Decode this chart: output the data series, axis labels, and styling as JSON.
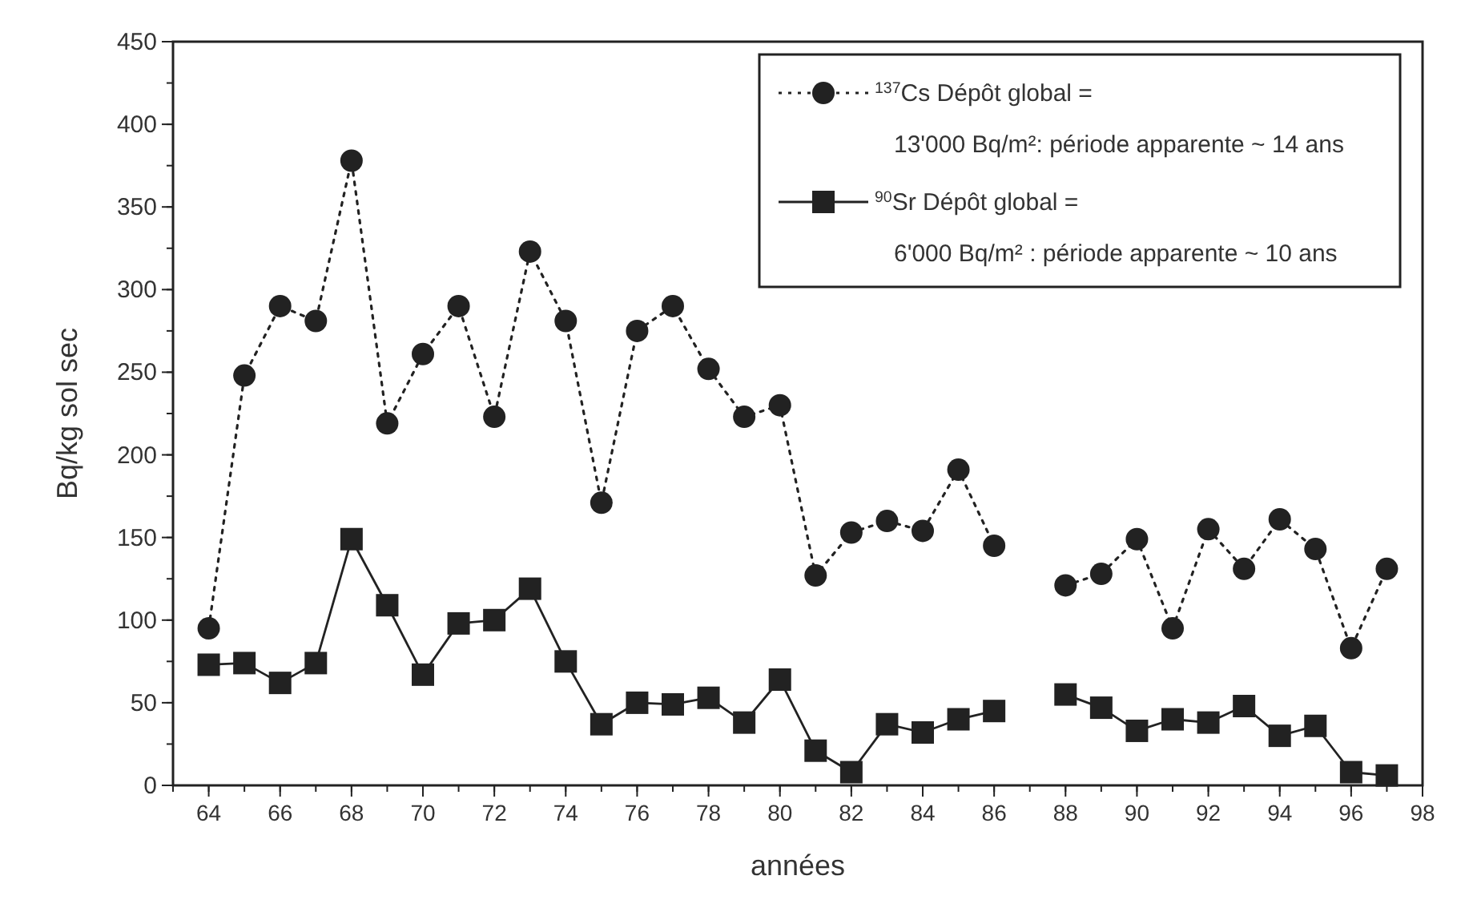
{
  "chart_data": {
    "type": "line",
    "xlabel": "années",
    "ylabel": "Bq/kg sol sec",
    "x": [
      64,
      65,
      66,
      67,
      68,
      69,
      70,
      71,
      72,
      73,
      74,
      75,
      76,
      77,
      78,
      79,
      80,
      81,
      82,
      83,
      84,
      85,
      86,
      87,
      88,
      89,
      90,
      91,
      92,
      93,
      94,
      95,
      96,
      97
    ],
    "xlim": [
      63,
      98
    ],
    "xticks": [
      64,
      66,
      68,
      70,
      72,
      74,
      76,
      78,
      80,
      82,
      84,
      86,
      88,
      90,
      92,
      94,
      96,
      98
    ],
    "ylim": [
      0,
      450
    ],
    "yticks": [
      0,
      50,
      100,
      150,
      200,
      250,
      300,
      350,
      400,
      450
    ],
    "grid": false,
    "legend": "top right",
    "series": [
      {
        "name": "$^{137}$Cs Dépôt global =\n13'000 Bq/m²: période apparente ~ 14 ans",
        "color": "#222222",
        "marker": "circle",
        "line_style": "dotted",
        "values": [
          95,
          248,
          290,
          281,
          378,
          219,
          261,
          290,
          223,
          323,
          281,
          171,
          275,
          290,
          252,
          223,
          230,
          127,
          153,
          160,
          154,
          191,
          145,
          null,
          121,
          128,
          149,
          95,
          155,
          131,
          161,
          143,
          83,
          131
        ]
      },
      {
        "name": "$^{90}$Sr Dépôt global =\n6'000 Bq/m² : période apparente ~ 10 ans",
        "color": "#222222",
        "marker": "square",
        "line_style": "solid",
        "values": [
          73,
          74,
          62,
          74,
          149,
          109,
          67,
          98,
          100,
          119,
          75,
          37,
          50,
          49,
          53,
          38,
          64,
          21,
          8,
          37,
          32,
          40,
          45,
          null,
          55,
          47,
          33,
          40,
          38,
          48,
          30,
          36,
          8,
          6
        ]
      }
    ]
  }
}
